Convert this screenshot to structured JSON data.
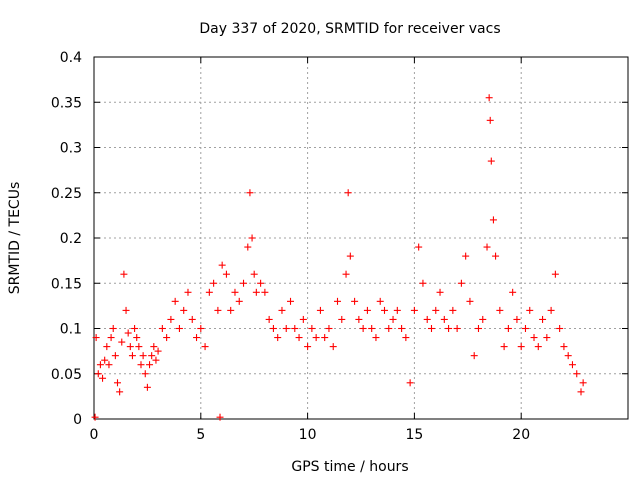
{
  "chart_data": {
    "type": "scatter",
    "title": "Day 337 of 2020, SRMTID for receiver vacs",
    "xlabel": "GPS time / hours",
    "ylabel": "SRMTID / TECUs",
    "xlim": [
      0,
      25
    ],
    "ylim": [
      0,
      0.4
    ],
    "xticks": [
      "0",
      "5",
      "10",
      "15",
      "20"
    ],
    "yticks": [
      "0",
      "0.05",
      "0.1",
      "0.15",
      "0.2",
      "0.25",
      "0.3",
      "0.35",
      "0.4"
    ],
    "grid": true,
    "marker": "+",
    "color": "#ff0000",
    "series": [
      {
        "name": "vacs",
        "points": [
          [
            0.05,
            0.002
          ],
          [
            0.1,
            0.09
          ],
          [
            0.2,
            0.05
          ],
          [
            0.3,
            0.06
          ],
          [
            0.4,
            0.045
          ],
          [
            0.5,
            0.065
          ],
          [
            0.6,
            0.08
          ],
          [
            0.7,
            0.06
          ],
          [
            0.8,
            0.09
          ],
          [
            0.9,
            0.1
          ],
          [
            1.0,
            0.07
          ],
          [
            1.1,
            0.04
          ],
          [
            1.2,
            0.03
          ],
          [
            1.3,
            0.085
          ],
          [
            1.4,
            0.16
          ],
          [
            1.5,
            0.12
          ],
          [
            1.6,
            0.095
          ],
          [
            1.7,
            0.08
          ],
          [
            1.8,
            0.07
          ],
          [
            1.9,
            0.1
          ],
          [
            2.0,
            0.09
          ],
          [
            2.1,
            0.08
          ],
          [
            2.2,
            0.06
          ],
          [
            2.3,
            0.07
          ],
          [
            2.4,
            0.05
          ],
          [
            2.5,
            0.035
          ],
          [
            2.6,
            0.06
          ],
          [
            2.7,
            0.07
          ],
          [
            2.8,
            0.08
          ],
          [
            2.9,
            0.065
          ],
          [
            3.0,
            0.075
          ],
          [
            3.2,
            0.1
          ],
          [
            3.4,
            0.09
          ],
          [
            3.6,
            0.11
          ],
          [
            3.8,
            0.13
          ],
          [
            4.0,
            0.1
          ],
          [
            4.2,
            0.12
          ],
          [
            4.4,
            0.14
          ],
          [
            4.6,
            0.11
          ],
          [
            4.8,
            0.09
          ],
          [
            5.0,
            0.1
          ],
          [
            5.2,
            0.08
          ],
          [
            5.4,
            0.14
          ],
          [
            5.6,
            0.15
          ],
          [
            5.8,
            0.12
          ],
          [
            5.9,
            0.002
          ],
          [
            6.0,
            0.17
          ],
          [
            6.2,
            0.16
          ],
          [
            6.4,
            0.12
          ],
          [
            6.6,
            0.14
          ],
          [
            6.8,
            0.13
          ],
          [
            7.0,
            0.15
          ],
          [
            7.2,
            0.19
          ],
          [
            7.3,
            0.25
          ],
          [
            7.4,
            0.2
          ],
          [
            7.5,
            0.16
          ],
          [
            7.6,
            0.14
          ],
          [
            7.8,
            0.15
          ],
          [
            8.0,
            0.14
          ],
          [
            8.2,
            0.11
          ],
          [
            8.4,
            0.1
          ],
          [
            8.6,
            0.09
          ],
          [
            8.8,
            0.12
          ],
          [
            9.0,
            0.1
          ],
          [
            9.2,
            0.13
          ],
          [
            9.4,
            0.1
          ],
          [
            9.6,
            0.09
          ],
          [
            9.8,
            0.11
          ],
          [
            10.0,
            0.08
          ],
          [
            10.2,
            0.1
          ],
          [
            10.4,
            0.09
          ],
          [
            10.6,
            0.12
          ],
          [
            10.8,
            0.09
          ],
          [
            11.0,
            0.1
          ],
          [
            11.2,
            0.08
          ],
          [
            11.4,
            0.13
          ],
          [
            11.6,
            0.11
          ],
          [
            11.8,
            0.16
          ],
          [
            11.9,
            0.25
          ],
          [
            12.0,
            0.18
          ],
          [
            12.2,
            0.13
          ],
          [
            12.4,
            0.11
          ],
          [
            12.6,
            0.1
          ],
          [
            12.8,
            0.12
          ],
          [
            13.0,
            0.1
          ],
          [
            13.2,
            0.09
          ],
          [
            13.4,
            0.13
          ],
          [
            13.6,
            0.12
          ],
          [
            13.8,
            0.1
          ],
          [
            14.0,
            0.11
          ],
          [
            14.2,
            0.12
          ],
          [
            14.4,
            0.1
          ],
          [
            14.6,
            0.09
          ],
          [
            14.8,
            0.04
          ],
          [
            15.0,
            0.12
          ],
          [
            15.2,
            0.19
          ],
          [
            15.4,
            0.15
          ],
          [
            15.6,
            0.11
          ],
          [
            15.8,
            0.1
          ],
          [
            16.0,
            0.12
          ],
          [
            16.2,
            0.14
          ],
          [
            16.4,
            0.11
          ],
          [
            16.6,
            0.1
          ],
          [
            16.8,
            0.12
          ],
          [
            17.0,
            0.1
          ],
          [
            17.2,
            0.15
          ],
          [
            17.4,
            0.18
          ],
          [
            17.6,
            0.13
          ],
          [
            17.8,
            0.07
          ],
          [
            18.0,
            0.1
          ],
          [
            18.2,
            0.11
          ],
          [
            18.4,
            0.19
          ],
          [
            18.5,
            0.355
          ],
          [
            18.55,
            0.33
          ],
          [
            18.6,
            0.285
          ],
          [
            18.7,
            0.22
          ],
          [
            18.8,
            0.18
          ],
          [
            19.0,
            0.12
          ],
          [
            19.2,
            0.08
          ],
          [
            19.4,
            0.1
          ],
          [
            19.6,
            0.14
          ],
          [
            19.8,
            0.11
          ],
          [
            20.0,
            0.08
          ],
          [
            20.2,
            0.1
          ],
          [
            20.4,
            0.12
          ],
          [
            20.6,
            0.09
          ],
          [
            20.8,
            0.08
          ],
          [
            21.0,
            0.11
          ],
          [
            21.2,
            0.09
          ],
          [
            21.4,
            0.12
          ],
          [
            21.6,
            0.16
          ],
          [
            21.8,
            0.1
          ],
          [
            22.0,
            0.08
          ],
          [
            22.2,
            0.07
          ],
          [
            22.4,
            0.06
          ],
          [
            22.6,
            0.05
          ],
          [
            22.8,
            0.03
          ],
          [
            22.9,
            0.04
          ]
        ]
      }
    ]
  }
}
